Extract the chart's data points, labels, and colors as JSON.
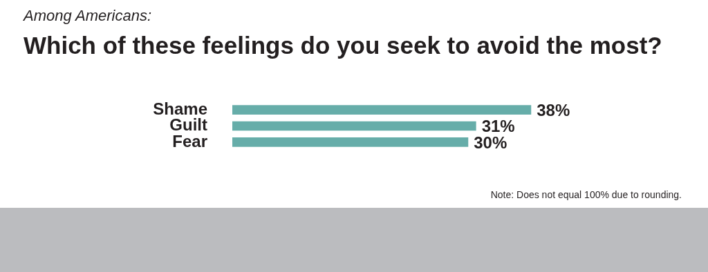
{
  "chart_data": {
    "type": "bar",
    "orientation": "horizontal",
    "subtitle": "Among Americans:",
    "title": "Which of these feelings do you seek to avoid the most?",
    "categories": [
      "Shame",
      "Guilt",
      "Fear"
    ],
    "values": [
      38,
      31,
      30
    ],
    "value_labels": [
      "38%",
      "31%",
      "30%"
    ],
    "color": "#66ada9",
    "legend": false,
    "annotations": [
      "Note: Does not equal 100% due to rounding."
    ]
  }
}
